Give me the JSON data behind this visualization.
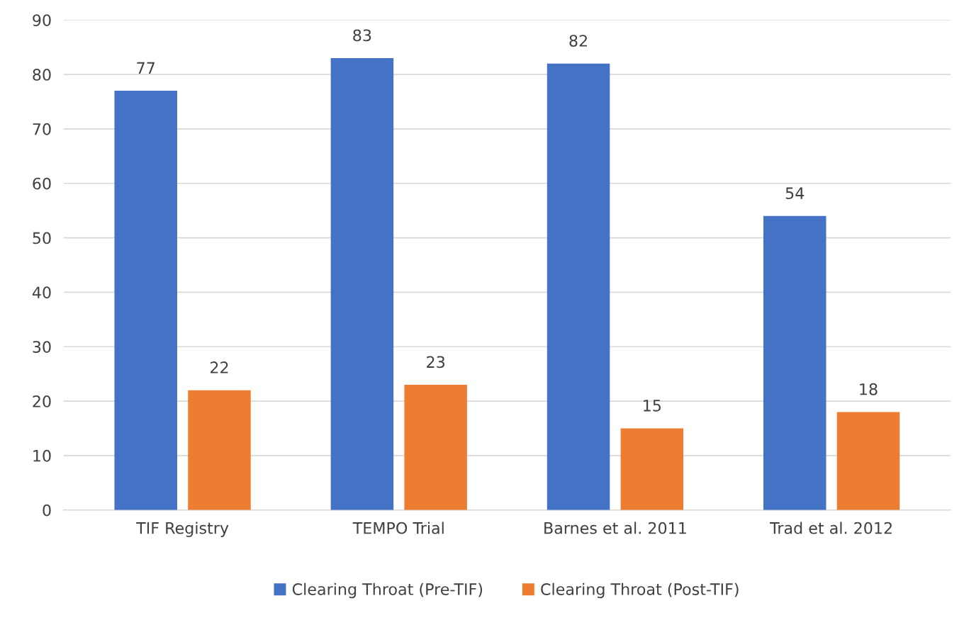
{
  "chart_data": {
    "type": "bar",
    "categories": [
      "TIF Registry",
      "TEMPO Trial",
      "Barnes et al. 2011",
      "Trad et al. 2012"
    ],
    "series": [
      {
        "name": "Clearing Throat (Pre-TIF)",
        "color": "#4472c4",
        "values": [
          77,
          83,
          82,
          54
        ]
      },
      {
        "name": "Clearing Throat (Post-TIF)",
        "color": "#ed7d31",
        "values": [
          22,
          23,
          15,
          18
        ]
      }
    ],
    "ylim": [
      0,
      90
    ],
    "yticks": [
      0,
      10,
      20,
      30,
      40,
      50,
      60,
      70,
      80,
      90
    ],
    "grid": "y",
    "legend": "bottom",
    "data_labels": true
  }
}
